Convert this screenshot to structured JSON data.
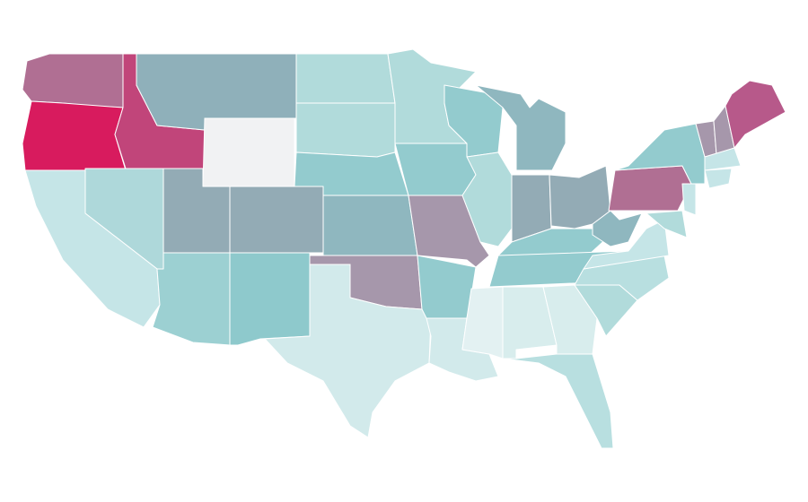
{
  "map": {
    "regions": [
      {
        "color": "#b06f93"
      },
      {
        "color": "#d81b5e"
      },
      {
        "color": "#c1457a"
      },
      {
        "color": "#8fb0ba"
      },
      {
        "color": "#f1f2f3"
      },
      {
        "color": "#b1dbdb"
      },
      {
        "color": "#b1dbdb"
      },
      {
        "color": "#93cbce"
      },
      {
        "color": "#8fb7bf"
      },
      {
        "color": "#93abb5"
      },
      {
        "color": "#93abb5"
      },
      {
        "color": "#aed8da"
      },
      {
        "color": "#c5e5e7"
      },
      {
        "color": "#9cd0d2"
      },
      {
        "color": "#8ec9cc"
      },
      {
        "color": "#a697ab"
      },
      {
        "color": "#d2eaeb"
      },
      {
        "color": "#b1dbdb"
      },
      {
        "color": "#93cbce"
      },
      {
        "color": "#a697ab"
      },
      {
        "color": "#93cbce"
      },
      {
        "color": "#b1dbdb"
      },
      {
        "color": "#8fb7bf"
      },
      {
        "color": "#93abb5"
      },
      {
        "color": "#93abb5"
      },
      {
        "color": "#93cbce"
      },
      {
        "color": "#93cbce"
      },
      {
        "color": "#93cbce"
      },
      {
        "color": "#d2eaeb"
      },
      {
        "color": "#e3f1f2"
      },
      {
        "color": "#d8eded"
      },
      {
        "color": "#d8eded"
      },
      {
        "color": "#b8dfe0"
      },
      {
        "color": "#b1dbdb"
      },
      {
        "color": "#b8dfe0"
      },
      {
        "color": "#c5e5e7"
      },
      {
        "color": "#8fb7bf"
      },
      {
        "color": "#b06f93"
      },
      {
        "color": "#93cbce"
      },
      {
        "color": "#a697ab"
      },
      {
        "color": "#a697ab"
      },
      {
        "color": "#b7598a"
      },
      {
        "color": "#c5e5e7"
      },
      {
        "color": "#c5e5e7"
      },
      {
        "color": "#c5e5e7"
      },
      {
        "color": "#b1dbdb"
      }
    ]
  }
}
